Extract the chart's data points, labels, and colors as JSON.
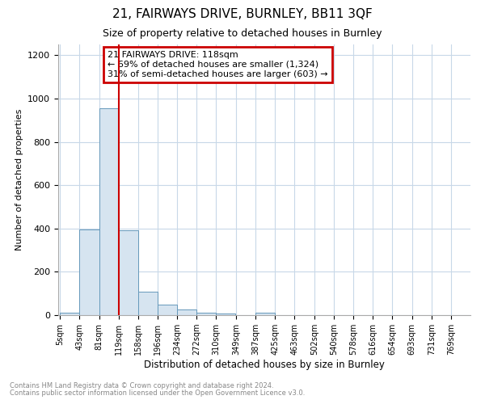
{
  "title": "21, FAIRWAYS DRIVE, BURNLEY, BB11 3QF",
  "subtitle": "Size of property relative to detached houses in Burnley",
  "xlabel": "Distribution of detached houses by size in Burnley",
  "ylabel": "Number of detached properties",
  "bar_edges": [
    5,
    43,
    81,
    119,
    158,
    196,
    234,
    272,
    310,
    349,
    387,
    425,
    463,
    502,
    540,
    578,
    616,
    654,
    693,
    731,
    769
  ],
  "bar_heights": [
    10,
    395,
    955,
    390,
    107,
    48,
    25,
    12,
    8,
    0,
    12,
    0,
    0,
    0,
    0,
    0,
    0,
    0,
    0,
    0
  ],
  "bar_color": "#d6e4f0",
  "bar_edge_color": "#6699bb",
  "grid_color": "#c8d8e8",
  "property_line_x": 119,
  "property_line_color": "#cc0000",
  "annotation_title": "21 FAIRWAYS DRIVE: 118sqm",
  "annotation_line1": "← 69% of detached houses are smaller (1,324)",
  "annotation_line2": "31% of semi-detached houses are larger (603) →",
  "annotation_box_color": "#cc0000",
  "ylim": [
    0,
    1250
  ],
  "yticks": [
    0,
    200,
    400,
    600,
    800,
    1000,
    1200
  ],
  "tick_labels": [
    "5sqm",
    "43sqm",
    "81sqm",
    "119sqm",
    "158sqm",
    "196sqm",
    "234sqm",
    "272sqm",
    "310sqm",
    "349sqm",
    "387sqm",
    "425sqm",
    "463sqm",
    "502sqm",
    "540sqm",
    "578sqm",
    "616sqm",
    "654sqm",
    "693sqm",
    "731sqm",
    "769sqm"
  ],
  "footnote1": "Contains HM Land Registry data © Crown copyright and database right 2024.",
  "footnote2": "Contains public sector information licensed under the Open Government Licence v3.0.",
  "bg_color": "#ffffff",
  "plot_bg_color": "#ffffff"
}
